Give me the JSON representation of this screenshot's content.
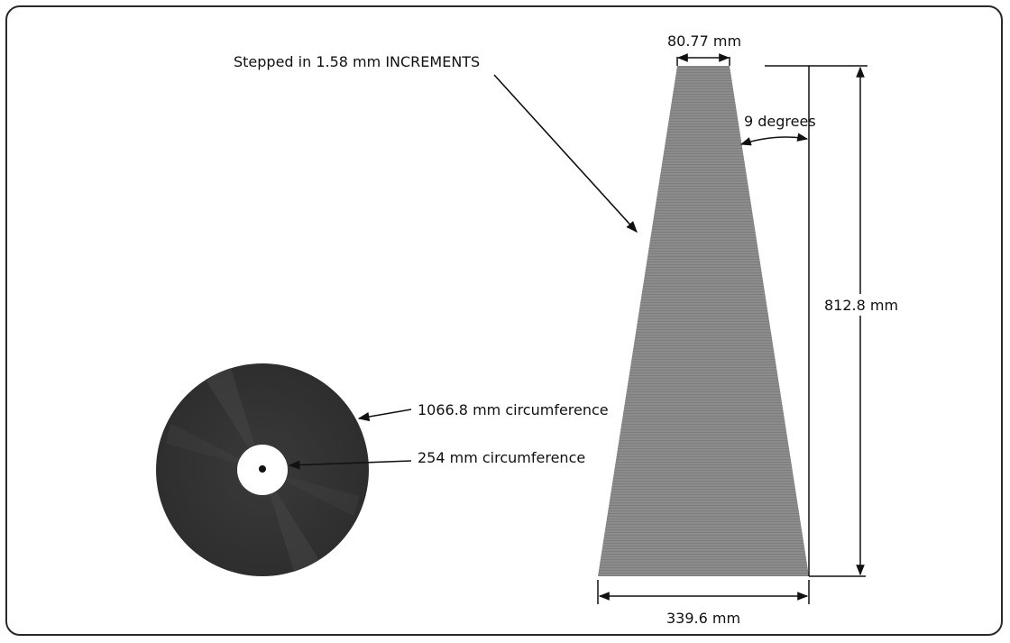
{
  "labels": {
    "stepped": "Stepped in 1.58 mm INCREMENTS",
    "top_width": "80.77 mm",
    "angle": "9 degrees",
    "height": "812.8 mm",
    "bottom_width": "339.6 mm",
    "outer_circ": "1066.8 mm circumference",
    "inner_circ": "254 mm circumference"
  },
  "colors": {
    "trapezoid": "#8c8c8c",
    "disc": "#333333",
    "line": "#111111"
  }
}
